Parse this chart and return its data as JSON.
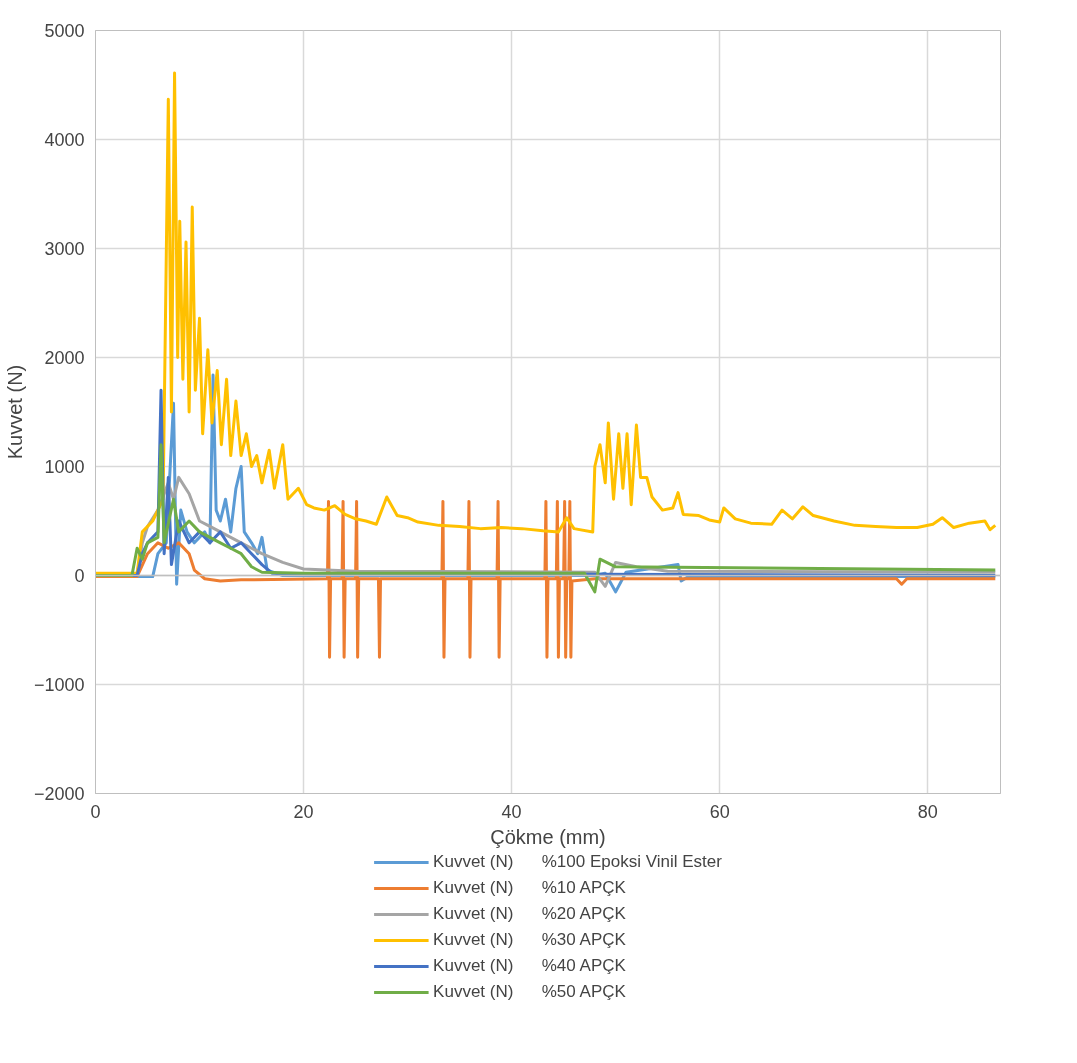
{
  "chart_data": {
    "type": "line",
    "xlabel": "Çökme (mm)",
    "ylabel": "Kuvvet (N)",
    "xlim": [
      0,
      87
    ],
    "ylim": [
      -2000,
      5000
    ],
    "xticks": [
      0,
      20,
      40,
      60,
      80
    ],
    "yticks": [
      -2000,
      -1000,
      0,
      1000,
      2000,
      3000,
      4000,
      5000
    ],
    "grid": true,
    "legend": "bottom",
    "marker": "none",
    "line_style": "solid",
    "series": [
      {
        "name": "Kuvvet (N)      %100 Epoksi Vinil Ester",
        "color": "#5b9bd5",
        "x": [
          0,
          5.5,
          6,
          6.8,
          7.5,
          7.8,
          8.2,
          8.8,
          9.5,
          10.5,
          11,
          11.3,
          11.6,
          12,
          12.5,
          13,
          13.5,
          14,
          14.3,
          15,
          15.6,
          16,
          16.5,
          18,
          48,
          49,
          50,
          51,
          56,
          56.3,
          57,
          86.5
        ],
        "values": [
          -10,
          -10,
          200,
          300,
          1580,
          -80,
          600,
          400,
          300,
          400,
          300,
          1840,
          600,
          500,
          700,
          400,
          800,
          1000,
          400,
          300,
          200,
          350,
          50,
          0,
          0,
          20,
          -150,
          30,
          100,
          -50,
          -10,
          -10
        ]
      },
      {
        "name": "Kuvvet (N)      %10 APÇK",
        "color": "#ed7d31",
        "x": [
          0,
          4,
          5,
          6,
          7,
          8,
          9,
          9.5,
          10.5,
          12,
          14,
          22.3,
          22.4,
          22.5,
          22.6,
          23.7,
          23.8,
          23.9,
          24.0,
          25.0,
          25.1,
          25.2,
          25.3,
          27.2,
          27.3,
          27.4,
          33.3,
          33.4,
          33.5,
          33.6,
          35.8,
          35.9,
          36.0,
          36.1,
          38.6,
          38.7,
          38.8,
          38.9,
          43.2,
          43.3,
          43.4,
          43.5,
          44.3,
          44.4,
          44.5,
          44.6,
          45.0,
          45.1,
          45.2,
          45.3,
          45.5,
          45.6,
          45.7,
          45.8,
          48,
          50,
          77,
          77.5,
          78,
          86.5
        ],
        "values": [
          -10,
          -10,
          200,
          300,
          250,
          300,
          200,
          50,
          -30,
          -50,
          -40,
          -30,
          680,
          -750,
          -30,
          -30,
          680,
          -750,
          -30,
          -30,
          680,
          -750,
          -30,
          -30,
          -750,
          -30,
          -30,
          680,
          -750,
          -30,
          -30,
          680,
          -750,
          -30,
          -30,
          680,
          -750,
          -30,
          -30,
          680,
          -750,
          -30,
          -30,
          680,
          -750,
          -30,
          -30,
          680,
          -750,
          -30,
          -30,
          680,
          -750,
          -50,
          -30,
          -30,
          -30,
          -80,
          -30,
          -30
        ]
      },
      {
        "name": "Kuvvet (N)      %20 APÇK",
        "color": "#a5a5a5",
        "x": [
          0,
          4,
          4.5,
          5,
          6,
          7,
          7.5,
          8,
          9,
          10,
          11,
          12,
          13,
          14,
          15,
          16,
          18,
          20,
          25,
          48,
          49,
          50,
          52,
          55,
          86.5
        ],
        "values": [
          0,
          0,
          300,
          450,
          600,
          850,
          700,
          900,
          750,
          500,
          450,
          400,
          350,
          300,
          250,
          200,
          120,
          60,
          40,
          30,
          -100,
          120,
          80,
          40,
          30
        ]
      },
      {
        "name": "Kuvvet (N)      %30 APÇK",
        "color": "#ffc000",
        "x": [
          0,
          4,
          4.5,
          5.5,
          6.5,
          7.0,
          7.3,
          7.6,
          7.9,
          8.1,
          8.4,
          8.7,
          9.0,
          9.3,
          9.6,
          10.0,
          10.3,
          10.8,
          11.2,
          11.7,
          12.1,
          12.6,
          13.0,
          13.5,
          14.0,
          14.5,
          15.0,
          15.5,
          16.0,
          16.7,
          17.2,
          18,
          18.5,
          19.5,
          20.3,
          21,
          22,
          23,
          24,
          25,
          26,
          27,
          28,
          29,
          30,
          31,
          33,
          35,
          37,
          39,
          41,
          43,
          44.5,
          45.3,
          46,
          47.8,
          48.0,
          48.5,
          49,
          49.3,
          49.8,
          50.3,
          50.7,
          51.1,
          51.5,
          52,
          52.4,
          53,
          53.5,
          54.5,
          55.5,
          56,
          56.5,
          58,
          59,
          60,
          60.4,
          61.5,
          63,
          65,
          66,
          67,
          68,
          69,
          71,
          73,
          75,
          77,
          79,
          80.5,
          81.4,
          82.5,
          84,
          85.5,
          86,
          86.5
        ],
        "values": [
          20,
          20,
          400,
          500,
          700,
          4370,
          1500,
          4610,
          2000,
          3250,
          1800,
          3060,
          1500,
          3380,
          1700,
          2360,
          1300,
          2070,
          1400,
          1880,
          1200,
          1800,
          1100,
          1600,
          1100,
          1300,
          1000,
          1100,
          850,
          1150,
          800,
          1200,
          700,
          800,
          650,
          620,
          600,
          640,
          560,
          520,
          500,
          470,
          720,
          550,
          530,
          490,
          460,
          450,
          430,
          440,
          430,
          410,
          400,
          530,
          430,
          400,
          1000,
          1200,
          850,
          1400,
          700,
          1300,
          800,
          1300,
          650,
          1380,
          900,
          900,
          720,
          600,
          620,
          760,
          560,
          550,
          510,
          490,
          620,
          520,
          480,
          470,
          600,
          520,
          630,
          550,
          500,
          460,
          450,
          440,
          440,
          470,
          530,
          440,
          480,
          500,
          420,
          460
        ]
      },
      {
        "name": "Kuvvet (N)      %40 APÇK",
        "color": "#4472c4",
        "x": [
          0,
          4,
          4.5,
          5,
          6,
          6.3,
          6.6,
          7,
          7.3,
          8,
          9,
          10,
          11,
          12,
          13,
          14,
          15,
          16,
          17,
          86.5
        ],
        "values": [
          0,
          0,
          200,
          300,
          400,
          1700,
          200,
          900,
          100,
          500,
          300,
          400,
          300,
          400,
          250,
          300,
          200,
          100,
          20,
          0
        ]
      },
      {
        "name": "Kuvvet (N)      %50 APÇK",
        "color": "#70ad47",
        "x": [
          0,
          3.5,
          4,
          4.5,
          5,
          6,
          6.3,
          6.6,
          7.5,
          8,
          9,
          10,
          11,
          12,
          13,
          14,
          15,
          16,
          20,
          47,
          48,
          48.5,
          50,
          86.5
        ],
        "values": [
          0,
          0,
          250,
          150,
          300,
          350,
          1200,
          300,
          700,
          400,
          500,
          400,
          350,
          300,
          250,
          200,
          80,
          30,
          20,
          20,
          -150,
          150,
          80,
          50
        ]
      }
    ]
  }
}
